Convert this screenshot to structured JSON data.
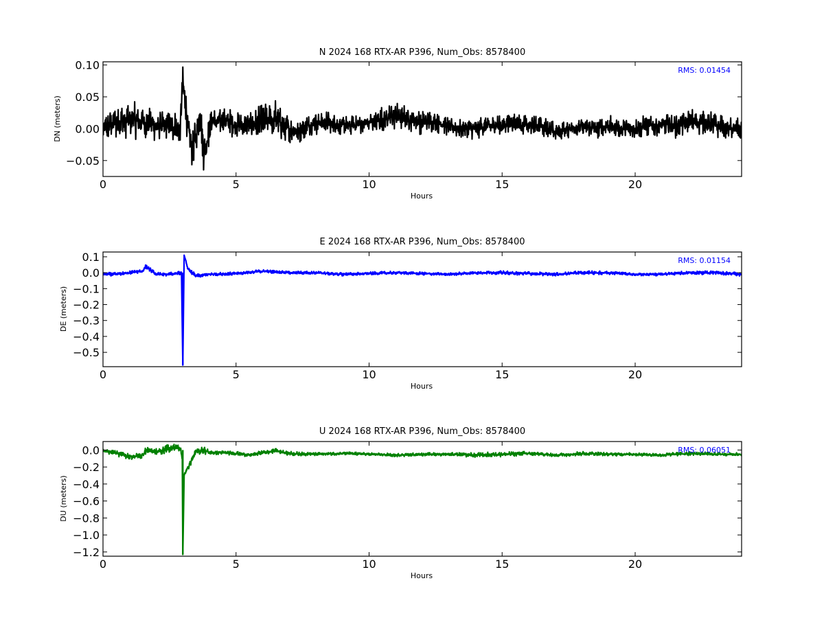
{
  "chart_data": [
    {
      "type": "line",
      "title": "N 2024 168 RTX-AR  P396, Num_Obs: 8578400",
      "xlabel": "Hours",
      "ylabel": "DN (meters)",
      "xlim": [
        0,
        24
      ],
      "ylim": [
        -0.075,
        0.105
      ],
      "xticks": [
        0,
        5,
        10,
        15,
        20
      ],
      "xtick_labels": [
        "0",
        "5",
        "10",
        "15",
        "20"
      ],
      "yticks": [
        0.1,
        0.05,
        0.0,
        -0.05
      ],
      "ytick_labels": [
        "0.10",
        "0.05",
        "0.00",
        "−0.05"
      ],
      "rms_text": "RMS:  0.01454",
      "color": "#000000",
      "grid": false,
      "series": [
        {
          "x": [
            0,
            0.5,
            1,
            1.5,
            2,
            2.5,
            2.9,
            3.0,
            3.1,
            3.2,
            3.35,
            3.5,
            3.65,
            3.8,
            3.9,
            4.1,
            4.5,
            5,
            5.5,
            6,
            6.5,
            6.8,
            7.2,
            7.5,
            8,
            8.5,
            9,
            9.5,
            10,
            10.5,
            11,
            11.5,
            12,
            12.5,
            13,
            13.5,
            14,
            14.5,
            15,
            15.5,
            16,
            16.5,
            17,
            17.5,
            18,
            18.5,
            19,
            19.5,
            20,
            20.5,
            21,
            21.5,
            22,
            22.5,
            23,
            23.5,
            24
          ],
          "center": [
            0.0,
            0.01,
            0.015,
            0.01,
            0.005,
            0.005,
            0.0,
            0.07,
            0.04,
            0.0,
            -0.03,
            -0.01,
            0.025,
            -0.04,
            -0.02,
            0.01,
            0.015,
            0.005,
            0.005,
            0.01,
            0.015,
            0.005,
            -0.005,
            0.0,
            0.01,
            0.01,
            0.005,
            0.005,
            0.01,
            0.015,
            0.02,
            0.015,
            0.01,
            0.01,
            0.005,
            0.0,
            0.0,
            0.005,
            0.005,
            0.01,
            0.005,
            0.005,
            -0.005,
            0.0,
            0.005,
            0.0,
            0.005,
            0.0,
            0.0,
            0.005,
            0.005,
            0.005,
            0.01,
            0.01,
            0.005,
            0.0,
            0.0
          ],
          "amplitude": [
            0.025,
            0.028,
            0.03,
            0.03,
            0.025,
            0.025,
            0.03,
            0.03,
            0.035,
            0.03,
            0.035,
            0.025,
            0.03,
            0.035,
            0.03,
            0.025,
            0.025,
            0.022,
            0.02,
            0.03,
            0.035,
            0.025,
            0.022,
            0.02,
            0.02,
            0.018,
            0.016,
            0.016,
            0.018,
            0.022,
            0.022,
            0.02,
            0.02,
            0.018,
            0.017,
            0.017,
            0.017,
            0.018,
            0.017,
            0.017,
            0.017,
            0.017,
            0.015,
            0.015,
            0.015,
            0.016,
            0.017,
            0.017,
            0.017,
            0.018,
            0.019,
            0.02,
            0.022,
            0.022,
            0.02,
            0.018,
            0.017
          ]
        }
      ]
    },
    {
      "type": "line",
      "title": "E 2024 168 RTX-AR  P396, Num_Obs: 8578400",
      "xlabel": "Hours",
      "ylabel": "DE (meters)",
      "xlim": [
        0,
        24
      ],
      "ylim": [
        -0.59,
        0.13
      ],
      "xticks": [
        0,
        5,
        10,
        15,
        20
      ],
      "xtick_labels": [
        "0",
        "5",
        "10",
        "15",
        "20"
      ],
      "yticks": [
        0.1,
        0.0,
        -0.1,
        -0.2,
        -0.3,
        -0.4,
        -0.5
      ],
      "ytick_labels": [
        "0.1",
        "0.0",
        "−0.1",
        "−0.2",
        "−0.3",
        "−0.4",
        "−0.5"
      ],
      "rms_text": "RMS:  0.01154",
      "color": "#0000ff",
      "grid": false,
      "series": [
        {
          "x": [
            0,
            0.5,
            1,
            1.5,
            1.6,
            2,
            2.5,
            2.95,
            3.0,
            3.05,
            3.2,
            3.5,
            4,
            5,
            6,
            7,
            8,
            9,
            10,
            11,
            12,
            13,
            14,
            15,
            16,
            17,
            18,
            19,
            20,
            21,
            22,
            23,
            24
          ],
          "center": [
            -0.01,
            -0.01,
            0.0,
            0.01,
            0.04,
            -0.01,
            -0.01,
            0.0,
            -0.58,
            0.11,
            0.02,
            -0.02,
            -0.01,
            -0.005,
            0.01,
            0.0,
            0.0,
            -0.01,
            -0.005,
            0.0,
            -0.005,
            -0.01,
            0.0,
            0.0,
            -0.005,
            -0.01,
            0.0,
            0.0,
            -0.01,
            -0.01,
            0.0,
            0.0,
            -0.01
          ],
          "amplitude": [
            0.012,
            0.012,
            0.012,
            0.012,
            0.015,
            0.012,
            0.012,
            0.012,
            0.0,
            0.0,
            0.015,
            0.012,
            0.012,
            0.01,
            0.01,
            0.01,
            0.01,
            0.01,
            0.01,
            0.01,
            0.01,
            0.01,
            0.01,
            0.012,
            0.012,
            0.01,
            0.012,
            0.012,
            0.01,
            0.01,
            0.012,
            0.012,
            0.012
          ]
        }
      ]
    },
    {
      "type": "line",
      "title": "U 2024 168 RTX-AR  P396, Num_Obs: 8578400",
      "xlabel": "Hours",
      "ylabel": "DU (meters)",
      "xlim": [
        0,
        24
      ],
      "ylim": [
        -1.25,
        0.1
      ],
      "xticks": [
        0,
        5,
        10,
        15,
        20
      ],
      "xtick_labels": [
        "0",
        "5",
        "10",
        "15",
        "20"
      ],
      "yticks": [
        0.0,
        -0.2,
        -0.4,
        -0.6,
        -0.8,
        -1.0,
        -1.2
      ],
      "ytick_labels": [
        "0.0",
        "−0.2",
        "−0.4",
        "−0.6",
        "−0.8",
        "−1.0",
        "−1.2"
      ],
      "rms_text": "RMS:  0.06051",
      "color": "#008000",
      "grid": false,
      "series": [
        {
          "x": [
            0,
            0.5,
            1,
            1.5,
            1.6,
            2,
            2.5,
            2.9,
            2.98,
            3.0,
            3.05,
            3.2,
            3.5,
            3.8,
            4,
            4.5,
            5,
            5.5,
            6,
            6.5,
            7,
            8,
            9,
            10,
            11,
            12,
            13,
            14,
            15,
            16,
            17,
            18,
            19,
            20,
            21,
            22,
            23,
            24
          ],
          "center": [
            0.0,
            -0.04,
            -0.08,
            -0.06,
            0.0,
            -0.02,
            0.02,
            0.03,
            -0.1,
            -1.23,
            -0.3,
            -0.2,
            -0.02,
            0.0,
            -0.03,
            -0.03,
            -0.04,
            -0.06,
            -0.03,
            -0.01,
            -0.04,
            -0.05,
            -0.04,
            -0.05,
            -0.06,
            -0.05,
            -0.05,
            -0.06,
            -0.05,
            -0.04,
            -0.06,
            -0.04,
            -0.05,
            -0.05,
            -0.06,
            -0.04,
            -0.05,
            -0.05
          ],
          "amplitude": [
            0.03,
            0.035,
            0.035,
            0.04,
            0.05,
            0.045,
            0.05,
            0.05,
            0.03,
            0.0,
            0.04,
            0.04,
            0.04,
            0.06,
            0.025,
            0.025,
            0.025,
            0.02,
            0.025,
            0.03,
            0.025,
            0.02,
            0.02,
            0.02,
            0.02,
            0.02,
            0.02,
            0.03,
            0.03,
            0.025,
            0.02,
            0.03,
            0.02,
            0.02,
            0.02,
            0.025,
            0.02,
            0.02
          ]
        }
      ]
    }
  ]
}
